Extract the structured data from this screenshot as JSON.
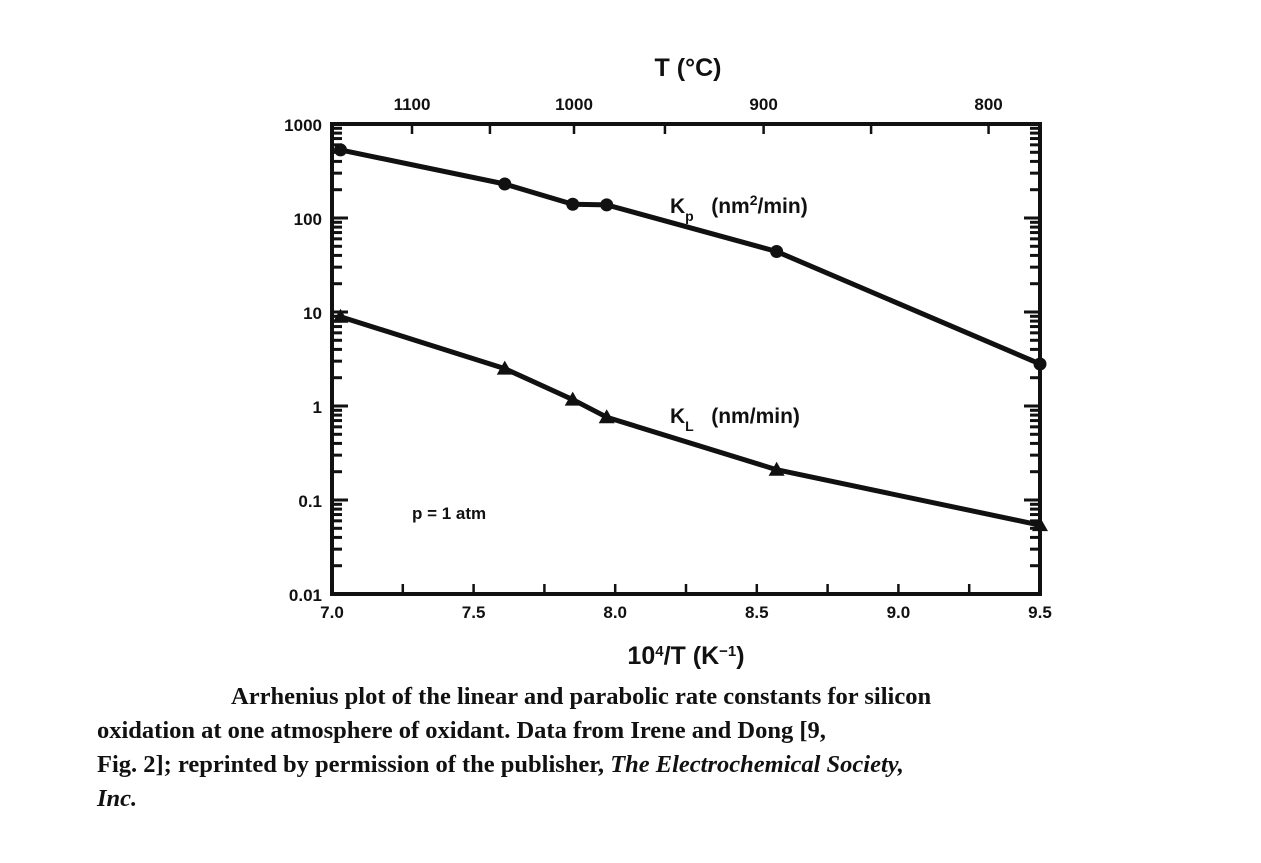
{
  "chart_data": {
    "type": "line",
    "title": "",
    "xlabel": "10^4/T (K^-1)",
    "xlabel_parts": {
      "base": "10",
      "sup": "4",
      "rest": "/T  (K",
      "sup2": "−1",
      "close": ")"
    },
    "ylabel": "",
    "x_range": [
      7.0,
      9.5
    ],
    "y_range": [
      0.01,
      1000
    ],
    "y_scale": "log",
    "x_ticks": [
      "7.0",
      "7.5",
      "8.0",
      "8.5",
      "9.0",
      "9.5"
    ],
    "x_tick_values": [
      7.0,
      7.5,
      8.0,
      8.5,
      9.0,
      9.5
    ],
    "y_ticks": [
      "1000",
      "100",
      "10",
      "1",
      "0.1",
      "0.01"
    ],
    "y_tick_values": [
      1000,
      100,
      10,
      1,
      0.1,
      0.01
    ],
    "top_axis": {
      "label": "T  (°C)",
      "ticks": [
        "1100",
        "1000",
        "900",
        "800"
      ],
      "tick_values_celsius": [
        1100,
        1000,
        900,
        800
      ],
      "minor_values_celsius": [
        1050,
        950,
        850
      ]
    },
    "grid": false,
    "legend": "inline labels",
    "annotations": [
      "p = 1 atm"
    ],
    "series": [
      {
        "name": "Kp (nm²/min)",
        "label_main": "K",
        "label_sub": "p",
        "label_units_pre": "(nm",
        "label_units_sup": "2",
        "label_units_post": "/min)",
        "marker": "circle",
        "x": [
          7.03,
          7.61,
          7.85,
          7.97,
          8.57,
          9.5
        ],
        "values": [
          530,
          230,
          140,
          138,
          44,
          2.8
        ]
      },
      {
        "name": "KL (nm/min)",
        "label_main": "K",
        "label_sub": "L",
        "label_units_pre": "(nm/min)",
        "label_units_sup": "",
        "label_units_post": "",
        "marker": "triangle",
        "x": [
          7.03,
          7.61,
          7.85,
          7.97,
          8.57,
          9.5
        ],
        "values": [
          8.9,
          2.5,
          1.17,
          0.76,
          0.21,
          0.054
        ]
      }
    ]
  },
  "caption": {
    "line1": "Arrhenius plot of the linear and parabolic rate constants for silicon",
    "line2": "oxidation at one atmosphere of oxidant.  Data from Irene and Dong [9,",
    "line3": "Fig. 2]; reprinted by permission of the publisher, ",
    "publisher": "The Electrochemical Society,",
    "line4": "Inc."
  }
}
